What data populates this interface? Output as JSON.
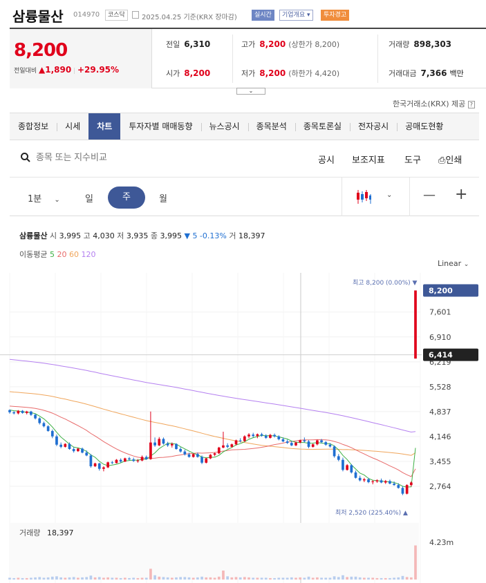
{
  "header": {
    "name": "삼륭물산",
    "code": "014970",
    "market": "코스닥",
    "date": "2025.04.25",
    "basis": "기준(KRX 장마감)",
    "realtime": "실시간",
    "corp_info": "기업개요",
    "warning": "투자경고"
  },
  "quote": {
    "price": "8,200",
    "change_label": "전일대비",
    "change": "1,890",
    "change_pct": "+29.95%",
    "prev_label": "전일",
    "prev": "6,310",
    "high_label": "고가",
    "high": "8,200",
    "upper_limit": "(상한가 8,200)",
    "volume_label": "거래량",
    "volume": "898,303",
    "open_label": "시가",
    "open": "8,200",
    "low_label": "저가",
    "low": "8,200",
    "lower_limit": "(하한가 4,420)",
    "amount_label": "거래대금",
    "amount": "7,366",
    "amount_unit": "백만"
  },
  "provider": "한국거래소(KRX) 제공",
  "tabs": [
    "종합정보",
    "시세",
    "차트",
    "투자자별 매매동향",
    "뉴스공시",
    "종목분석",
    "종목토론실",
    "전자공시",
    "공매도현황"
  ],
  "search": {
    "placeholder": "종목 또는 지수비교"
  },
  "tools": {
    "notice": "공시",
    "indicator": "보조지표",
    "draw": "도구",
    "print": "인쇄"
  },
  "periods": {
    "minute": "1분",
    "day": "일",
    "week": "주",
    "month": "월"
  },
  "info": {
    "name": "삼륭물산",
    "open_l": "시",
    "open": "3,995",
    "high_l": "고",
    "high": "4,030",
    "low_l": "저",
    "low": "3,935",
    "close_l": "종",
    "close": "3,995",
    "chg": "▼ 5 -0.13%",
    "vol_l": "거",
    "vol": "18,397"
  },
  "ma": {
    "label": "이동평균",
    "p5": "5",
    "p20": "20",
    "p60": "60",
    "p120": "120"
  },
  "scale": "Linear",
  "colors": {
    "up": "#e0001b",
    "down": "#1f6fd1",
    "accent": "#3e5897",
    "ma5": "#3cb043",
    "ma20": "#e86a6a",
    "ma60": "#f0a55a",
    "ma120": "#b47ff0"
  },
  "chart_data": {
    "type": "candlestick",
    "y_ticks": [
      "7,601",
      "6,910",
      "6,219",
      "5,528",
      "4,837",
      "4,146",
      "3,455",
      "2,764"
    ],
    "last_price": "8,200",
    "crosshair_price": "6,414",
    "max_label": "최고 8,200 (0.00%) ▼",
    "min_label": "최저 2,520 (225.40%) ▲",
    "volume_label": "거래량",
    "volume_value": "18,397",
    "volume_axis": "4.23m",
    "ylim": [
      2420,
      8420
    ],
    "candles": [
      [
        4880,
        4900,
        4780,
        4820
      ],
      [
        4820,
        4850,
        4760,
        4790
      ],
      [
        4790,
        4880,
        4760,
        4860
      ],
      [
        4860,
        4880,
        4780,
        4800
      ],
      [
        4800,
        4860,
        4760,
        4840
      ],
      [
        4840,
        4860,
        4720,
        4750
      ],
      [
        4750,
        4780,
        4620,
        4650
      ],
      [
        4650,
        4680,
        4480,
        4520
      ],
      [
        4520,
        4560,
        4400,
        4430
      ],
      [
        4430,
        4460,
        4280,
        4300
      ],
      [
        4300,
        4340,
        4100,
        4150
      ],
      [
        4150,
        4200,
        3880,
        3920
      ],
      [
        3920,
        3980,
        3820,
        3860
      ],
      [
        3860,
        3960,
        3840,
        3940
      ],
      [
        3940,
        3980,
        3780,
        3800
      ],
      [
        3800,
        3850,
        3700,
        3740
      ],
      [
        3740,
        3830,
        3720,
        3810
      ],
      [
        3810,
        3840,
        3680,
        3700
      ],
      [
        3700,
        3760,
        3600,
        3620
      ],
      [
        3620,
        3660,
        3280,
        3320
      ],
      [
        3320,
        3420,
        3300,
        3400
      ],
      [
        3400,
        3420,
        3200,
        3250
      ],
      [
        3250,
        3320,
        3180,
        3290
      ],
      [
        3290,
        3450,
        3270,
        3430
      ],
      [
        3430,
        3470,
        3380,
        3410
      ],
      [
        3410,
        3520,
        3400,
        3500
      ],
      [
        3500,
        3540,
        3420,
        3450
      ],
      [
        3450,
        3560,
        3440,
        3540
      ],
      [
        3540,
        3580,
        3480,
        3510
      ],
      [
        3510,
        3560,
        3440,
        3470
      ],
      [
        3470,
        3520,
        3420,
        3480
      ],
      [
        3480,
        3620,
        3460,
        3580
      ],
      [
        3580,
        3620,
        3500,
        3520
      ],
      [
        3520,
        4840,
        3500,
        3980
      ],
      [
        3980,
        4120,
        3860,
        3900
      ],
      [
        3900,
        4130,
        3880,
        4080
      ],
      [
        4080,
        4120,
        3920,
        3950
      ],
      [
        3950,
        4000,
        3860,
        3900
      ],
      [
        3900,
        3980,
        3840,
        3940
      ],
      [
        3940,
        3960,
        3780,
        3800
      ],
      [
        3800,
        3850,
        3700,
        3730
      ],
      [
        3730,
        3780,
        3620,
        3650
      ],
      [
        3650,
        3700,
        3560,
        3580
      ],
      [
        3580,
        3680,
        3560,
        3660
      ],
      [
        3660,
        3700,
        3560,
        3580
      ],
      [
        3580,
        3620,
        3380,
        3420
      ],
      [
        3420,
        3560,
        3400,
        3540
      ],
      [
        3540,
        3660,
        3520,
        3640
      ],
      [
        3640,
        3700,
        3600,
        3680
      ],
      [
        3680,
        3860,
        3660,
        3840
      ],
      [
        3840,
        4280,
        3820,
        3900
      ],
      [
        3900,
        3960,
        3820,
        3860
      ],
      [
        3860,
        3950,
        3840,
        3930
      ],
      [
        3930,
        4060,
        3900,
        4040
      ],
      [
        4040,
        4100,
        3980,
        4020
      ],
      [
        4020,
        4180,
        4000,
        4150
      ],
      [
        4150,
        4240,
        4100,
        4200
      ],
      [
        4200,
        4250,
        4120,
        4160
      ],
      [
        4160,
        4230,
        4100,
        4210
      ],
      [
        4210,
        4250,
        4140,
        4170
      ],
      [
        4170,
        4210,
        4080,
        4110
      ],
      [
        4110,
        4220,
        4090,
        4190
      ],
      [
        4190,
        4230,
        4120,
        4150
      ],
      [
        4150,
        4180,
        4040,
        4070
      ],
      [
        4070,
        4120,
        3990,
        4010
      ],
      [
        4010,
        4060,
        3940,
        3970
      ],
      [
        3970,
        4020,
        3880,
        3900
      ],
      [
        3900,
        4000,
        3880,
        3980
      ],
      [
        3980,
        4060,
        3960,
        4040
      ],
      [
        4040,
        4120,
        3980,
        4010
      ],
      [
        4010,
        4050,
        3820,
        3860
      ],
      [
        3860,
        3950,
        3840,
        3930
      ],
      [
        3930,
        4060,
        3900,
        4040
      ],
      [
        4040,
        4080,
        3960,
        3990
      ],
      [
        3990,
        4020,
        3890,
        3920
      ],
      [
        3920,
        3960,
        3840,
        3870
      ],
      [
        3870,
        3900,
        3560,
        3600
      ],
      [
        3600,
        3660,
        3460,
        3500
      ],
      [
        3500,
        3560,
        3180,
        3220
      ],
      [
        3220,
        3380,
        3200,
        3350
      ],
      [
        3350,
        3380,
        3120,
        3150
      ],
      [
        3150,
        3200,
        2980,
        3000
      ],
      [
        3000,
        3060,
        2900,
        2930
      ],
      [
        2930,
        3000,
        2880,
        2960
      ],
      [
        2960,
        3000,
        2850,
        2880
      ],
      [
        2880,
        2940,
        2820,
        2900
      ],
      [
        2900,
        2960,
        2860,
        2930
      ],
      [
        2930,
        2980,
        2850,
        2870
      ],
      [
        2870,
        2940,
        2830,
        2910
      ],
      [
        2910,
        2950,
        2820,
        2840
      ],
      [
        2840,
        2900,
        2780,
        2800
      ],
      [
        2800,
        2850,
        2700,
        2720
      ],
      [
        2720,
        2770,
        2520,
        2560
      ],
      [
        2560,
        2820,
        2540,
        2800
      ],
      [
        2800,
        2900,
        2760,
        2870
      ],
      [
        6310,
        8200,
        6310,
        8200
      ]
    ],
    "volumes": [
      0.05,
      0.04,
      0.05,
      0.04,
      0.04,
      0.05,
      0.06,
      0.07,
      0.05,
      0.06,
      0.08,
      0.09,
      0.06,
      0.05,
      0.06,
      0.07,
      0.05,
      0.06,
      0.07,
      0.11,
      0.06,
      0.07,
      0.05,
      0.06,
      0.05,
      0.05,
      0.04,
      0.05,
      0.04,
      0.05,
      0.04,
      0.05,
      0.05,
      0.3,
      0.12,
      0.08,
      0.07,
      0.06,
      0.05,
      0.06,
      0.07,
      0.07,
      0.06,
      0.05,
      0.06,
      0.08,
      0.06,
      0.06,
      0.05,
      0.08,
      0.25,
      0.09,
      0.06,
      0.07,
      0.06,
      0.07,
      0.06,
      0.05,
      0.05,
      0.05,
      0.05,
      0.04,
      0.04,
      0.05,
      0.05,
      0.05,
      0.06,
      0.05,
      0.06,
      0.05,
      0.08,
      0.05,
      0.06,
      0.05,
      0.05,
      0.05,
      0.09,
      0.07,
      0.12,
      0.07,
      0.08,
      0.08,
      0.06,
      0.05,
      0.05,
      0.05,
      0.04,
      0.04,
      0.04,
      0.04,
      0.05,
      0.06,
      0.1,
      0.07,
      0.06,
      0.95
    ]
  }
}
